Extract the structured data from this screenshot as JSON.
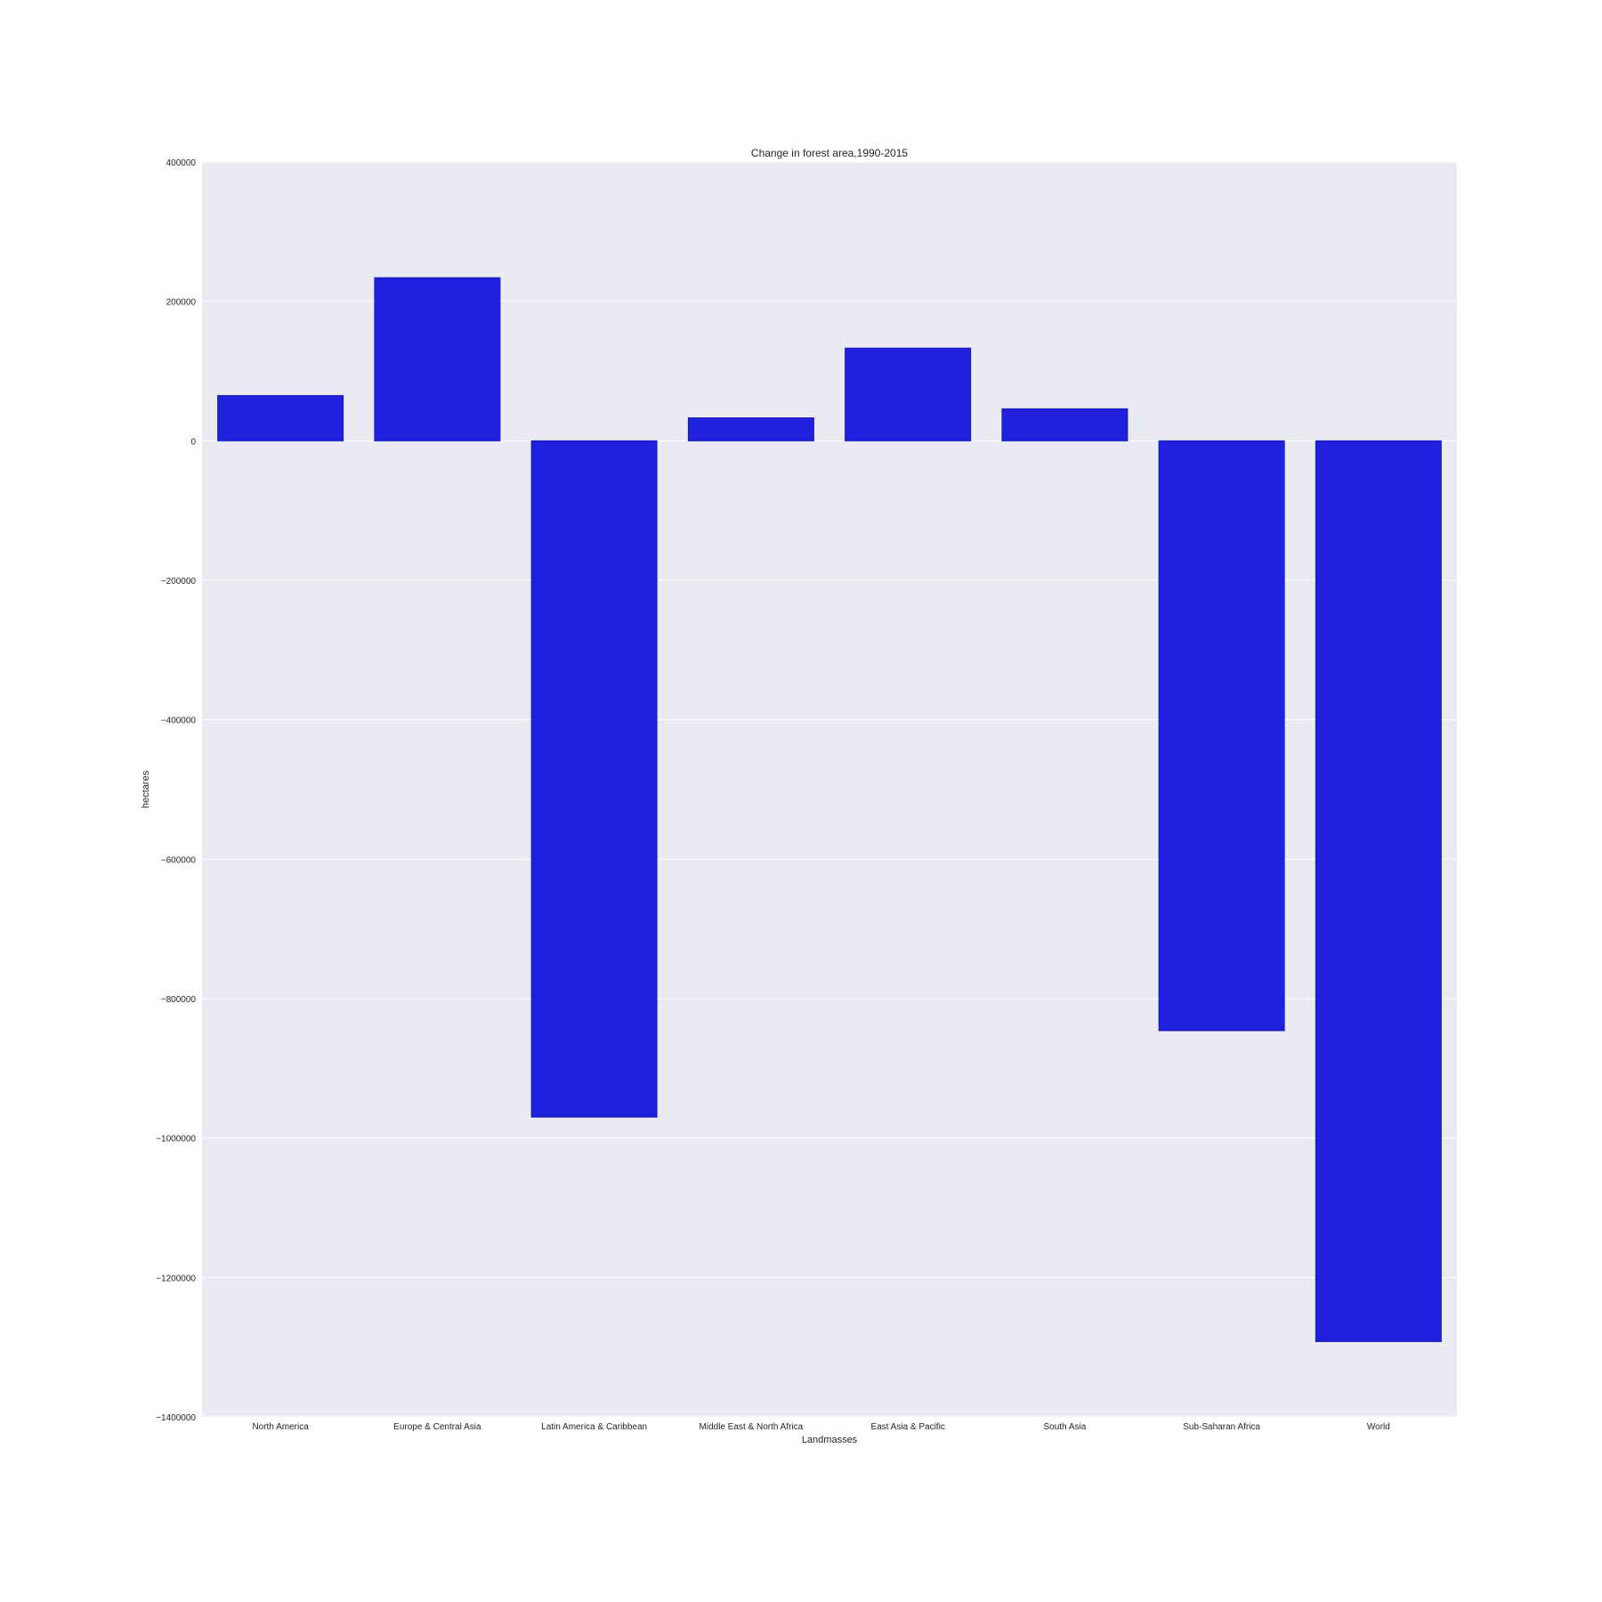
{
  "chart_data": {
    "type": "bar",
    "title": "Change in forest area,1990-2015",
    "xlabel": "Landmasses",
    "ylabel": "hectares",
    "categories": [
      "North America",
      "Europe & Central Asia",
      "Latin America & Caribbean",
      "Middle East & North Africa",
      "East Asia & Pacific",
      "South Asia",
      "Sub-Saharan Africa",
      "World"
    ],
    "values": [
      65000,
      234000,
      -970000,
      33000,
      133000,
      46000,
      -846000,
      -1292000
    ],
    "ylim": [
      -1400000,
      400000
    ],
    "yticks": [
      400000,
      200000,
      0,
      -200000,
      -400000,
      -600000,
      -800000,
      -1000000,
      -1200000,
      -1400000
    ],
    "ytick_labels": [
      "400000",
      "200000",
      "0",
      "−200000",
      "−400000",
      "−600000",
      "−800000",
      "−1000000",
      "−1200000",
      "−1400000"
    ],
    "grid": true,
    "colors": {
      "bar": "#2020df",
      "bar_edge": "#1a1ab0",
      "background": "#eaeaf2",
      "grid": "#ffffff"
    }
  }
}
